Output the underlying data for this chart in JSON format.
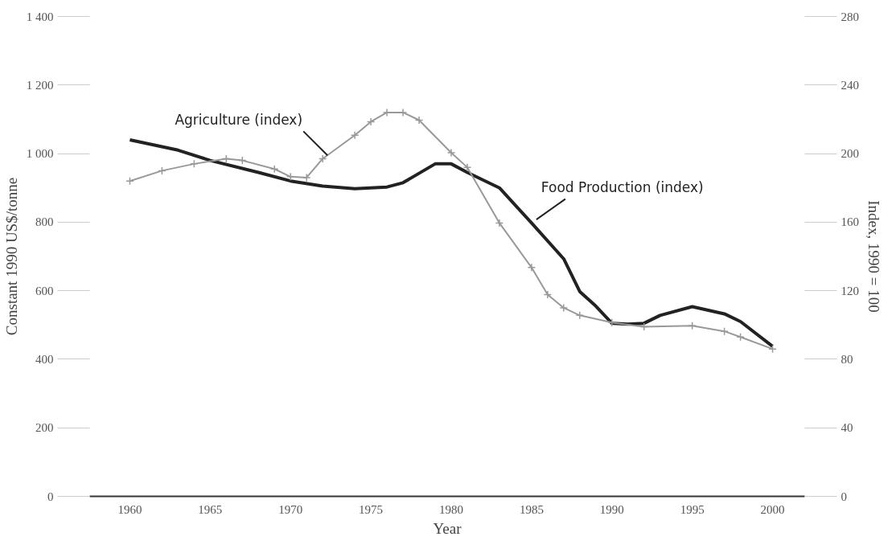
{
  "chart_data": {
    "type": "line",
    "xlabel": "Year",
    "ylabel": "Constant 1990 US$/tonne",
    "y2label": "Index, 1990 = 100",
    "xlim": [
      1957.5,
      2002
    ],
    "xticks": [
      1960,
      1965,
      1970,
      1975,
      1980,
      1985,
      1990,
      1995,
      2000
    ],
    "ylim": [
      0,
      1400
    ],
    "yticks": [
      0,
      200,
      400,
      600,
      800,
      {
        "value": 1000,
        "label": "1 000"
      },
      {
        "value": 1200,
        "label": "1 200"
      },
      {
        "value": 1400,
        "label": "1 400"
      }
    ],
    "y2lim": [
      0,
      280
    ],
    "y2ticks": [
      0,
      40,
      80,
      120,
      160,
      200,
      240,
      280
    ],
    "grid": false,
    "line_style": "solid",
    "series": [
      {
        "name": "Food Production (index)",
        "color": "#222222",
        "axis": "y2",
        "marker": "none",
        "x": [
          1960,
          1963,
          1965,
          1968,
          1970,
          1972,
          1974,
          1976,
          1977,
          1979,
          1980,
          1981,
          1983,
          1985,
          1987,
          1988,
          1989,
          1990,
          1991,
          1992,
          1993,
          1995,
          1997,
          1998,
          2000
        ],
        "values": [
          208,
          202,
          196,
          189,
          184,
          181,
          179.5,
          180.5,
          183,
          194,
          194,
          189,
          180,
          159.5,
          138.6,
          119.5,
          111,
          101,
          100.5,
          101,
          105.6,
          110.7,
          106.5,
          102,
          87.5
        ]
      },
      {
        "name": "Agriculture (index)",
        "color": "#999999",
        "axis": "y2",
        "marker": "cross",
        "x": [
          1960,
          1962,
          1964,
          1966,
          1967,
          1969,
          1970,
          1971,
          1972,
          1974,
          1975,
          1976,
          1977,
          1978,
          1980,
          1981,
          1983,
          1985,
          1986,
          1987,
          1988,
          1990,
          1992,
          1995,
          1997,
          1998,
          2000
        ],
        "values": [
          184,
          190,
          194,
          197,
          196,
          191,
          186.5,
          186,
          197,
          210.7,
          218.6,
          224,
          224,
          219.5,
          200.5,
          192,
          159.5,
          133.5,
          117.7,
          110,
          105.6,
          101.4,
          99,
          99.5,
          96.3,
          93,
          86
        ]
      }
    ]
  }
}
